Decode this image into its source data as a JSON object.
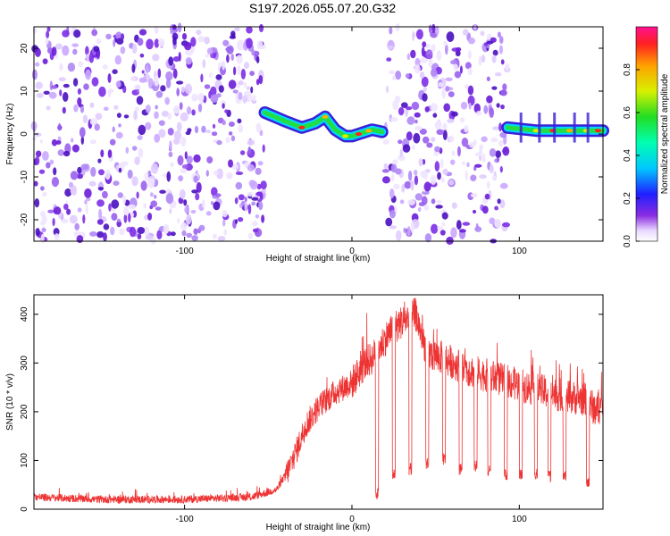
{
  "chart_data": [
    {
      "type": "heatmap",
      "title": "S197.2026.055.07.20.G32",
      "xlabel": "Height of straight line (km)",
      "ylabel": "Frequency (Hz)",
      "xlim": [
        -190,
        150
      ],
      "ylim": [
        -25,
        25
      ],
      "x_ticks": [
        -100,
        0,
        100
      ],
      "y_ticks": [
        -20,
        -10,
        0,
        10,
        20
      ],
      "colorbar": {
        "label": "Normalized spectral amplitude",
        "range": [
          0,
          1
        ],
        "ticks": [
          0.0,
          0.2,
          0.4,
          0.6,
          0.8
        ]
      },
      "noise_regions": [
        {
          "x_start": -190,
          "x_end": -52
        },
        {
          "x_start": 20,
          "x_end": 93
        }
      ],
      "trace": {
        "x": [
          -52,
          -40,
          -30,
          -22,
          -16,
          -10,
          -4,
          0,
          4,
          8,
          12,
          18,
          93,
          100,
          110,
          120,
          130,
          140,
          150
        ],
        "frequency": [
          5,
          3,
          1.5,
          2.5,
          4,
          1,
          -0.5,
          -0.5,
          0,
          0.5,
          1,
          0.5,
          1.5,
          1.2,
          0.8,
          0.8,
          0.8,
          0.8,
          0.8
        ]
      }
    },
    {
      "type": "line",
      "title": "",
      "xlabel": "Height of straight line (km)",
      "ylabel": "SNR (10 * v/v)",
      "xlim": [
        -190,
        150
      ],
      "ylim": [
        0,
        440
      ],
      "x_ticks": [
        -100,
        0,
        100
      ],
      "y_ticks": [
        0,
        100,
        200,
        300,
        400
      ],
      "series": [
        {
          "name": "SNR",
          "color": "#ee3333",
          "x": [
            -190,
            -150,
            -100,
            -60,
            -45,
            -38,
            -32,
            -28,
            -20,
            -10,
            0,
            8,
            12,
            18,
            24,
            30,
            38,
            45,
            55,
            70,
            90,
            110,
            130,
            140,
            145,
            150
          ],
          "values": [
            25,
            20,
            20,
            25,
            40,
            80,
            130,
            170,
            210,
            240,
            260,
            300,
            310,
            340,
            370,
            385,
            400,
            320,
            310,
            285,
            265,
            245,
            230,
            225,
            205,
            210
          ]
        }
      ],
      "dropouts_x": [
        15,
        25,
        35,
        45,
        55,
        65,
        74,
        82,
        92,
        101,
        110,
        118,
        127,
        141
      ],
      "dropout_min": [
        20,
        60,
        70,
        80,
        90,
        70,
        75,
        65,
        60,
        60,
        60,
        55,
        55,
        45
      ]
    }
  ]
}
